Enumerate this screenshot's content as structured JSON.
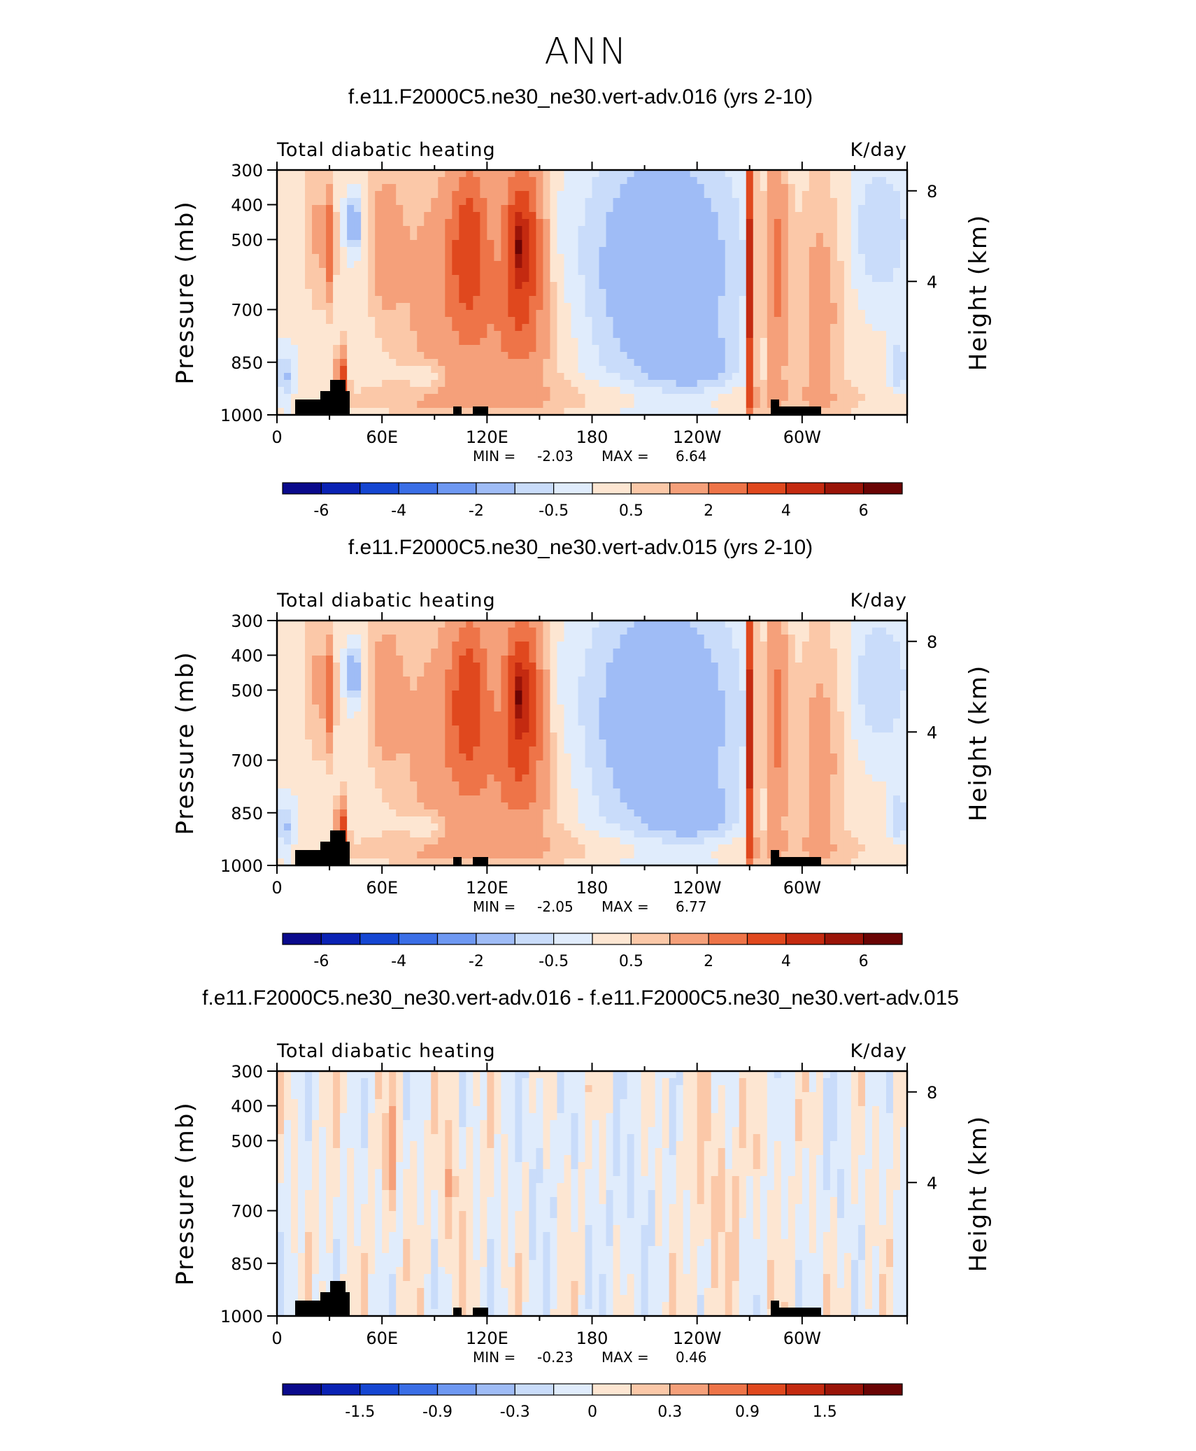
{
  "page_title": "ANN",
  "chart_data": [
    {
      "type": "heatmap",
      "title": "f.e11.F2000C5.ne30_ne30.vert-adv.016 (yrs 2-10)",
      "left_label": "Total diabatic heating",
      "right_label": "K/day",
      "ylabel": "Pressure (mb)",
      "y2label": "Height (km)",
      "xticks": [
        "0",
        "60E",
        "120E",
        "180",
        "120W",
        "60W"
      ],
      "yticks": [
        "300",
        "400",
        "500",
        "700",
        "850",
        "1000"
      ],
      "y2ticks": [
        "8",
        "4"
      ],
      "min_label": "MIN =",
      "min_value": "-2.03",
      "max_label": "MAX =",
      "max_value": "6.64",
      "colorbar_labels": [
        "-6",
        "-4",
        "-2",
        "-0.5",
        "0.5",
        "2",
        "4",
        "6"
      ]
    },
    {
      "type": "heatmap",
      "title": "f.e11.F2000C5.ne30_ne30.vert-adv.015 (yrs 2-10)",
      "left_label": "Total diabatic heating",
      "right_label": "K/day",
      "ylabel": "Pressure (mb)",
      "y2label": "Height (km)",
      "xticks": [
        "0",
        "60E",
        "120E",
        "180",
        "120W",
        "60W"
      ],
      "yticks": [
        "300",
        "400",
        "500",
        "700",
        "850",
        "1000"
      ],
      "y2ticks": [
        "8",
        "4"
      ],
      "min_label": "MIN =",
      "min_value": "-2.05",
      "max_label": "MAX =",
      "max_value": "6.77",
      "colorbar_labels": [
        "-6",
        "-4",
        "-2",
        "-0.5",
        "0.5",
        "2",
        "4",
        "6"
      ]
    },
    {
      "type": "heatmap",
      "title": "f.e11.F2000C5.ne30_ne30.vert-adv.016 - f.e11.F2000C5.ne30_ne30.vert-adv.015",
      "left_label": "Total diabatic heating",
      "right_label": "K/day",
      "ylabel": "Pressure (mb)",
      "y2label": "Height (km)",
      "xticks": [
        "0",
        "60E",
        "120E",
        "180",
        "120W",
        "60W"
      ],
      "yticks": [
        "300",
        "400",
        "500",
        "700",
        "850",
        "1000"
      ],
      "y2ticks": [
        "8",
        "4"
      ],
      "min_label": "MIN =",
      "min_value": "-0.23",
      "max_label": "MAX =",
      "max_value": "0.46",
      "colorbar_labels": [
        "-1.5",
        "-0.9",
        "-0.3",
        "0",
        "0.3",
        "0.9",
        "1.5"
      ]
    }
  ],
  "colors": {
    "palette": [
      "#0a0a8c",
      "#0a22b4",
      "#1546d2",
      "#3a6ee6",
      "#6e98f2",
      "#9fbcf6",
      "#c9dcfa",
      "#e0ecfc",
      "#fde6d2",
      "#fbc8a8",
      "#f5a07a",
      "#ee7448",
      "#e0481e",
      "#c42a10",
      "#9a1408",
      "#6a0404"
    ],
    "terrain": "#000000"
  }
}
